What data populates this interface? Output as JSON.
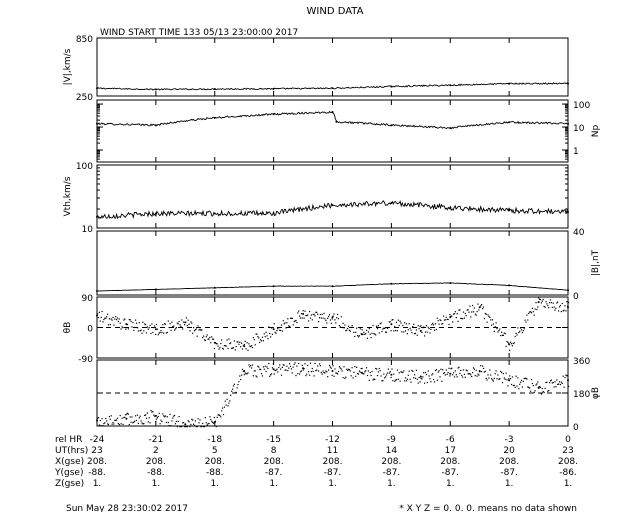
{
  "title": "WIND DATA",
  "subtitle": "WIND START TIME 133 05/13 23:00:00 2017",
  "footer": {
    "timestamp": "Sun May 28 23:30:02 2017",
    "note": "* X Y Z = 0. 0. 0. means no data shown"
  },
  "ephemeris": {
    "row_labels": [
      "rel HR",
      "UT(hrs)",
      "X(gse)",
      "Y(gse)",
      "Z(gse)"
    ],
    "rel_hr": [
      "-24",
      "-21",
      "-18",
      "-15",
      "-12",
      "-9",
      "-6",
      "-3",
      "0"
    ],
    "ut_hrs": [
      "23",
      "2",
      "5",
      "8",
      "11",
      "14",
      "17",
      "20",
      "23"
    ],
    "x_gse": [
      "208.",
      "208.",
      "208.",
      "208.",
      "208.",
      "208.",
      "208.",
      "208.",
      "208."
    ],
    "y_gse": [
      "-88.",
      "-88.",
      "-88.",
      "-87.",
      "-87.",
      "-87.",
      "-87.",
      "-87.",
      "-86."
    ],
    "z_gse": [
      "1.",
      "1.",
      "1.",
      "1.",
      "1.",
      "1.",
      "1.",
      "1.",
      "1."
    ]
  },
  "chart_data": [
    {
      "type": "line",
      "panel": "speed",
      "ylabel": "|V|,km/s",
      "ylabel_side": "left",
      "ticks": [
        "850",
        "250"
      ],
      "ylim": [
        250,
        850
      ],
      "scale": "linear",
      "x": [
        -24,
        -21,
        -18,
        -15,
        -12,
        -9,
        -6,
        -3,
        0
      ],
      "values": [
        330,
        318,
        322,
        325,
        330,
        348,
        362,
        378,
        378
      ]
    },
    {
      "type": "line",
      "panel": "density",
      "ylabel": "Np",
      "ylabel_side": "right",
      "ticks": [
        "100",
        "10",
        "1"
      ],
      "ylim": [
        0.3,
        150
      ],
      "scale": "log",
      "x": [
        -24,
        -21,
        -18,
        -15,
        -12,
        -11.8,
        -9,
        -6,
        -3,
        0
      ],
      "values": [
        14,
        12,
        25,
        36,
        45,
        17,
        12,
        9,
        16,
        14
      ]
    },
    {
      "type": "line",
      "panel": "thermal_speed",
      "ylabel": "Vth,km/s",
      "ylabel_side": "left",
      "ticks": [
        "100",
        "10"
      ],
      "ylim": [
        10,
        100
      ],
      "scale": "log",
      "x": [
        -24,
        -21,
        -18,
        -15,
        -12,
        -9,
        -6,
        -3,
        0
      ],
      "values": [
        15,
        17,
        17,
        17,
        23,
        25,
        21,
        19,
        18
      ]
    },
    {
      "type": "line",
      "panel": "field_magnitude",
      "ylabel": "|B|,nT",
      "ylabel_side": "right",
      "ticks": [
        "40",
        "0"
      ],
      "ylim": [
        0,
        40
      ],
      "scale": "linear",
      "x": [
        -24,
        -21,
        -18,
        -15,
        -12,
        -9,
        -6,
        -3,
        0
      ],
      "values": [
        2.5,
        3.5,
        4.5,
        5.5,
        5.5,
        7,
        7.5,
        6,
        3
      ]
    },
    {
      "type": "scatter",
      "panel": "theta_b",
      "ylabel": "θB",
      "ylabel_side": "left",
      "ticks": [
        "90",
        "0",
        "-90"
      ],
      "ylim": [
        -90,
        90
      ],
      "reference_line": 0,
      "x": [
        -24,
        -22.5,
        -21,
        -19.5,
        -18,
        -16.5,
        -15,
        -13.5,
        -12,
        -10.5,
        -9,
        -7.5,
        -6,
        -4.5,
        -3,
        -1.5,
        0
      ],
      "values": [
        35,
        10,
        -5,
        15,
        -45,
        -55,
        -5,
        40,
        30,
        -20,
        10,
        -10,
        30,
        60,
        -50,
        75,
        60
      ]
    },
    {
      "type": "scatter",
      "panel": "phi_b",
      "ylabel": "φB",
      "ylabel_side": "right",
      "ticks": [
        "360",
        "180",
        "0"
      ],
      "ylim": [
        0,
        360
      ],
      "reference_line": 180,
      "x": [
        -24,
        -22.5,
        -21,
        -19.5,
        -18,
        -16.5,
        -15,
        -13.5,
        -12,
        -10.5,
        -9,
        -7.5,
        -6,
        -4.5,
        -3,
        -1.5,
        0
      ],
      "values": [
        30,
        40,
        55,
        10,
        20,
        300,
        310,
        315,
        300,
        290,
        280,
        270,
        285,
        300,
        250,
        210,
        250
      ]
    }
  ]
}
